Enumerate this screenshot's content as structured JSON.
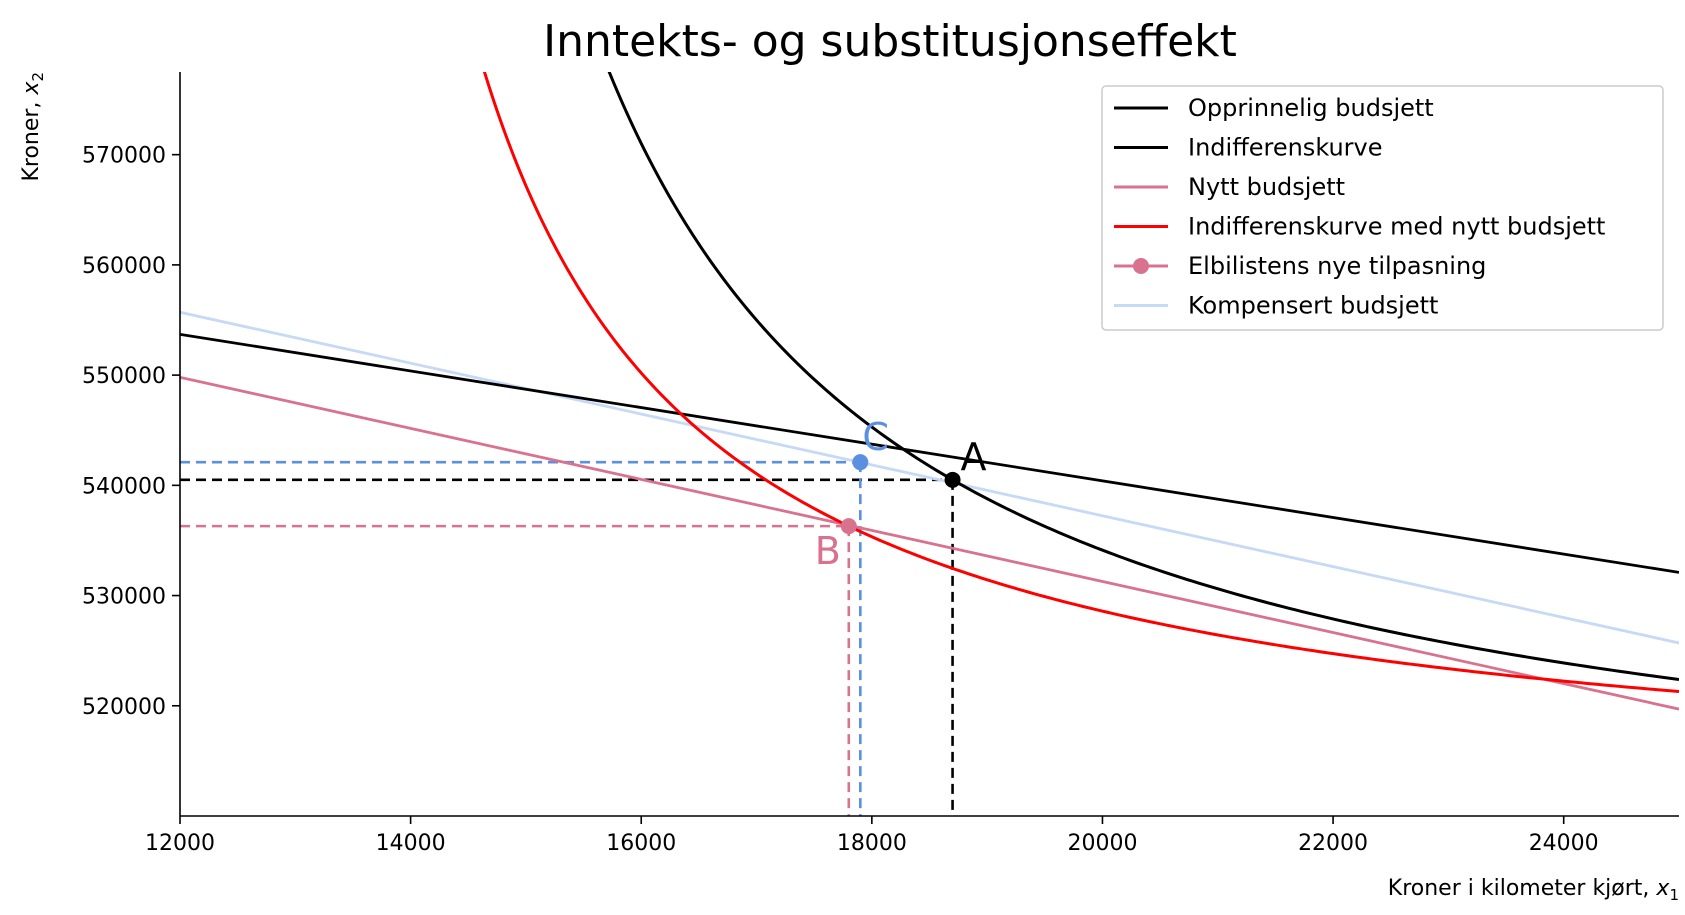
{
  "chart_data": {
    "type": "line",
    "title": "Inntekts- og substitusjonseffekt",
    "xlabel": "Kroner i kilometer kjørt, ",
    "xlabel_var": "x",
    "xlabel_sub": "1",
    "ylabel": "Kroner, ",
    "ylabel_var": "x",
    "ylabel_sub": "2",
    "xlim": [
      12000,
      25000
    ],
    "ylim": [
      510000,
      577500
    ],
    "xticks": [
      12000,
      14000,
      16000,
      18000,
      20000,
      22000,
      24000
    ],
    "yticks": [
      520000,
      530000,
      540000,
      550000,
      560000,
      570000
    ],
    "grid": false,
    "legend_position": "upper right",
    "legend": [
      {
        "label": "Opprinnelig budsjett",
        "color": "#000000",
        "marker": false
      },
      {
        "label": "Indifferenskurve",
        "color": "#000000",
        "marker": false
      },
      {
        "label": "Nytt budsjett",
        "color": "#d9728f",
        "marker": false
      },
      {
        "label": "Indifferenskurve med nytt budsjett",
        "color": "#ff0000",
        "marker": false
      },
      {
        "label": "Elbilistens nye tilpasning",
        "color": "#d9728f",
        "marker": true
      },
      {
        "label": "Kompensert budsjett",
        "color": "#c6d9f5",
        "marker": false
      }
    ],
    "lines": [
      {
        "name": "Opprinnelig budsjett",
        "color": "#000000",
        "x": [
          12000,
          25000
        ],
        "y": [
          553700,
          532100
        ]
      },
      {
        "name": "Nytt budsjett",
        "color": "#d9728f",
        "x": [
          12000,
          25000
        ],
        "y": [
          549800,
          519700
        ]
      },
      {
        "name": "Kompensert budsjett",
        "color": "#c6d9f5",
        "x": [
          12000,
          25000
        ],
        "y": [
          555700,
          525700
        ]
      }
    ],
    "curves": [
      {
        "name": "Indifferenskurve",
        "color": "#000000",
        "x_start": 13230,
        "x_end": 25000,
        "alpha": 0.37,
        "ref_x": 18700,
        "ref_y": 540500,
        "base_y": 505800
      },
      {
        "name": "Indifferenskurve med nytt budsjett",
        "color": "#ff0000",
        "x_start": 12970,
        "x_end": 25000,
        "alpha": 0.37,
        "ref_x": 17800,
        "ref_y": 536300,
        "base_y": 510600
      }
    ],
    "points": [
      {
        "label": "A",
        "x": 18700,
        "y": 540500,
        "color": "#000000"
      },
      {
        "label": "B",
        "x": 17800,
        "y": 536300,
        "color": "#d9728f"
      },
      {
        "label": "C",
        "x": 17900,
        "y": 542100,
        "color": "#5b8fe0"
      }
    ]
  }
}
